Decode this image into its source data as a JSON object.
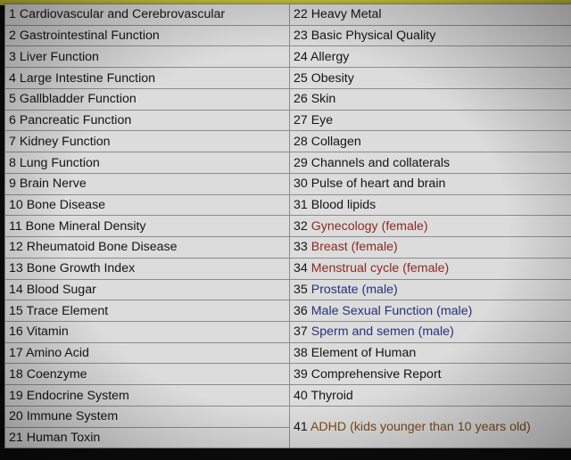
{
  "rows": [
    {
      "left": "1 Cardiovascular and Cerebrovascular",
      "right": "22 Heavy Metal"
    },
    {
      "left": "2 Gastrointestinal Function",
      "right": "23 Basic Physical Quality"
    },
    {
      "left": "3 Liver Function",
      "right": "24 Allergy"
    },
    {
      "left": "4 Large Intestine Function",
      "right": "25 Obesity"
    },
    {
      "left": "5 Gallbladder Function",
      "right": "26 Skin"
    },
    {
      "left": "6 Pancreatic Function",
      "right": "27 Eye"
    },
    {
      "left": "7 Kidney Function",
      "right": "28 Collagen"
    },
    {
      "left": "8 Lung Function",
      "right": "29 Channels and collaterals"
    },
    {
      "left": "9 Brain Nerve",
      "right": "30 Pulse of heart and brain"
    },
    {
      "left": "10 Bone Disease",
      "right": "31 Blood lipids"
    },
    {
      "left": "11 Bone Mineral Density",
      "right_num": "32",
      "right_text": "Gynecology (female)"
    },
    {
      "left": "12 Rheumatoid Bone Disease",
      "right_num": "33",
      "right_text": "Breast (female)"
    },
    {
      "left": "13 Bone Growth Index",
      "right_num": "34",
      "right_text": "Menstrual cycle (female)"
    },
    {
      "left": "14 Blood Sugar",
      "right_num": "35",
      "right_text": "Prostate (male)"
    },
    {
      "left": "15 Trace Element",
      "right_num": "36",
      "right_text": "Male Sexual Function (male)"
    },
    {
      "left": "16 Vitamin",
      "right_num": "37",
      "right_text": "Sperm and semen (male)"
    },
    {
      "left": "17 Amino Acid",
      "right": "38 Element of Human"
    },
    {
      "left": "18 Coenzyme",
      "right": "39 Comprehensive Report"
    },
    {
      "left": "19 Endocrine System",
      "right": "40 Thyroid"
    },
    {
      "left": "20 Immune System",
      "right_num": "41",
      "right_text": "ADHD (kids younger than 10 years old)"
    },
    {
      "left": "21 Human Toxin"
    }
  ],
  "colors": {
    "female": "#8a2a22",
    "male": "#26307a",
    "kids": "#7a4a18",
    "header_strip": "#cfcc3a"
  }
}
